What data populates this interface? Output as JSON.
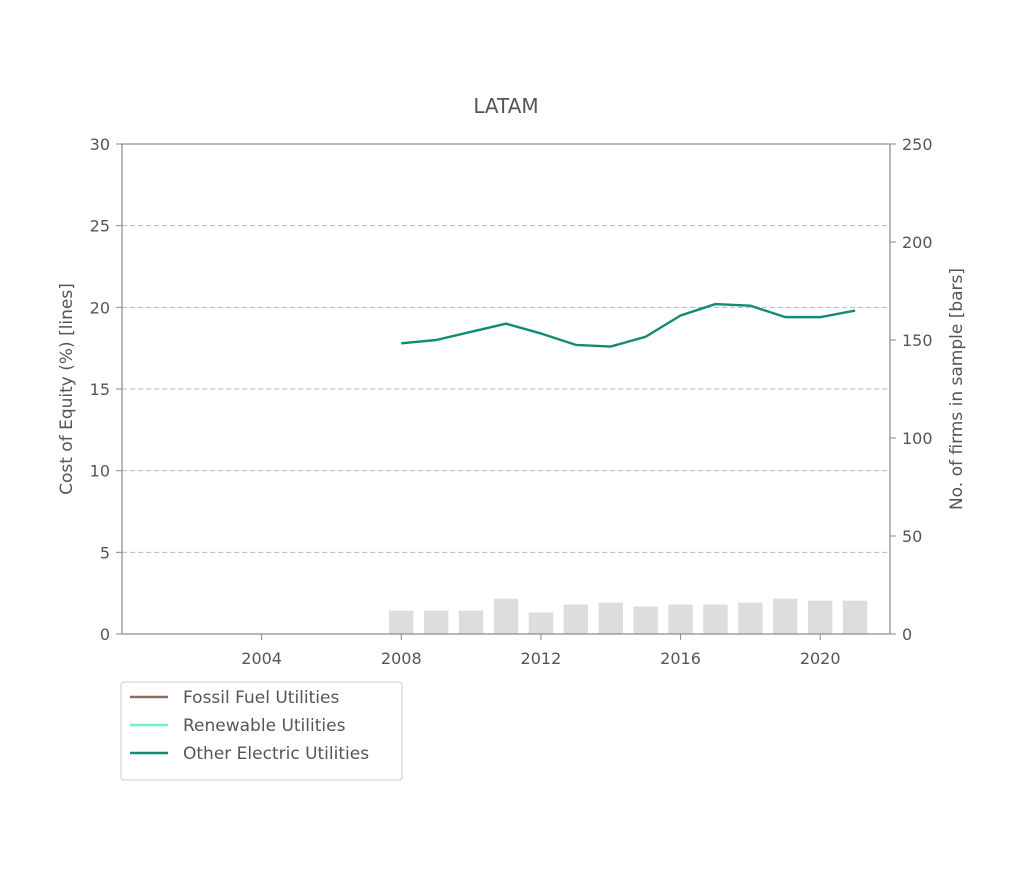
{
  "chart_data": {
    "type": "bar+line",
    "title": "LATAM",
    "ylabel_left": "Cost of Equity (%) [lines]",
    "ylabel_right": "No. of firms in sample [bars]",
    "xlim": [
      2000,
      2022
    ],
    "ylim_left": [
      0,
      30
    ],
    "ylim_right": [
      0,
      250
    ],
    "xticks": [
      "2004",
      "2008",
      "2012",
      "2016",
      "2020"
    ],
    "yticks_left": [
      "0",
      "5",
      "10",
      "15",
      "20",
      "25",
      "30"
    ],
    "yticks_right": [
      "0",
      "50",
      "100",
      "150",
      "200",
      "250"
    ],
    "grid": "horizontal dashed",
    "legend_placement": "below-left",
    "bars": {
      "x": [
        2008,
        2009,
        2010,
        2011,
        2012,
        2013,
        2014,
        2015,
        2016,
        2017,
        2018,
        2019,
        2020,
        2021
      ],
      "values": [
        12,
        12,
        12,
        18,
        11,
        15,
        16,
        14,
        15,
        15,
        16,
        18,
        17,
        17
      ],
      "color": "#dddddd"
    },
    "series": [
      {
        "name": "Fossil Fuel Utilities",
        "color": "#8c6d62",
        "x": [],
        "values": []
      },
      {
        "name": "Renewable Utilities",
        "color": "#6ff5d2",
        "x": [],
        "values": []
      },
      {
        "name": "Other Electric Utilities",
        "color": "#138a72",
        "x": [
          2008,
          2009,
          2010,
          2011,
          2012,
          2013,
          2014,
          2015,
          2016,
          2017,
          2018,
          2019,
          2020,
          2021
        ],
        "values": [
          17.8,
          18.0,
          18.5,
          19.0,
          18.4,
          17.7,
          17.6,
          18.2,
          19.5,
          20.2,
          20.1,
          19.4,
          19.4,
          19.8
        ]
      }
    ]
  }
}
